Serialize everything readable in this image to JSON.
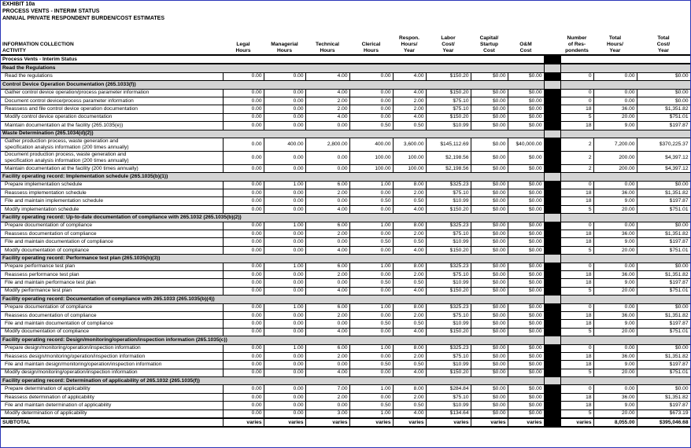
{
  "header": {
    "exhibit": "EXHIBIT 10a",
    "title": "PROCESS VENTS - INTERIM STATUS",
    "subtitle": "ANNUAL PRIVATE RESPONDENT BURDEN/COST ESTIMATES"
  },
  "table": {
    "columns": [
      "INFORMATION COLLECTION\nACTIVITY",
      "Legal\nHours",
      "Managerial\nHours",
      "Technical\nHours",
      "Clerical\nHours",
      "Respon.\nHours/\nYear",
      "Labor\nCost/\nYear",
      "Capital/\nStartup\nCost",
      "O&M\nCost",
      "Number\nof Res-\npondents",
      "Total\nHours/\nYear",
      "Total\nCost/\nYear"
    ],
    "group": "Process Vents - Interim Status",
    "sections": [
      {
        "title": "Read the Regulations",
        "rows": [
          [
            "Read the regulations",
            "0.00",
            "0.00",
            "4.00",
            "0.00",
            "4.00",
            "$150.20",
            "$0.00",
            "$0.00",
            "0",
            "0.00",
            "$0.00"
          ]
        ]
      },
      {
        "title": "Control Device Operation Documentation (265.1033(f))",
        "rows": [
          [
            "Gather control device operation/process parameter information",
            "0.00",
            "0.00",
            "4.00",
            "0.00",
            "4.00",
            "$150.20",
            "$0.00",
            "$0.00",
            "0",
            "0.00",
            "$0.00"
          ],
          [
            "Document control device/process parameter information",
            "0.00",
            "0.00",
            "2.00",
            "0.00",
            "2.00",
            "$75.10",
            "$0.00",
            "$0.00",
            "0",
            "0.00",
            "$0.00"
          ],
          [
            "Reassess and file control device operation documentation",
            "0.00",
            "0.00",
            "2.00",
            "0.00",
            "2.00",
            "$75.10",
            "$0.00",
            "$0.00",
            "18",
            "36.00",
            "$1,351.82"
          ],
          [
            "Modify control device operation documentation",
            "0.00",
            "0.00",
            "4.00",
            "0.00",
            "4.00",
            "$150.20",
            "$0.00",
            "$0.00",
            "5",
            "20.00",
            "$751.01"
          ],
          [
            "Maintain documentation at the facility (265.1035(e))",
            "0.00",
            "0.00",
            "0.00",
            "0.50",
            "0.50",
            "$10.99",
            "$0.00",
            "$0.00",
            "18",
            "9.00",
            "$197.87"
          ]
        ]
      },
      {
        "title": "Waste Determination (265.1034(d)(2))",
        "rows": [
          [
            "Gather production process, waste generation and\nspecification analysis information (200 times annually)",
            "0.00",
            "400.00",
            "2,800.00",
            "400.00",
            "3,600.00",
            "$145,112.69",
            "$0.00",
            "$40,000.00",
            "2",
            "7,200.00",
            "$370,225.37"
          ],
          [
            "Document production process, waste generation and\nspecification analysis information (200 times annually)",
            "0.00",
            "0.00",
            "0.00",
            "100.00",
            "100.00",
            "$2,198.56",
            "$0.00",
            "$0.00",
            "2",
            "200.00",
            "$4,397.12"
          ],
          [
            "Maintain documentation at the facility (200 times annually)",
            "0.00",
            "0.00",
            "0.00",
            "100.00",
            "100.00",
            "$2,198.56",
            "$0.00",
            "$0.00",
            "2",
            "200.00",
            "$4,397.12"
          ]
        ]
      },
      {
        "title": "Facility operating record: Implementation schedule (265.1035(b)(1))",
        "rows": [
          [
            "Prepare implementation schedule",
            "0.00",
            "1.00",
            "6.00",
            "1.00",
            "8.00",
            "$325.23",
            "$0.00",
            "$0.00",
            "0",
            "0.00",
            "$0.00"
          ],
          [
            "Reassess implementation schedule",
            "0.00",
            "0.00",
            "2.00",
            "0.00",
            "2.00",
            "$75.10",
            "$0.00",
            "$0.00",
            "18",
            "36.00",
            "$1,351.82"
          ],
          [
            "File and maintain implementation schedule",
            "0.00",
            "0.00",
            "0.00",
            "0.50",
            "0.50",
            "$10.99",
            "$0.00",
            "$0.00",
            "18",
            "9.00",
            "$197.87"
          ],
          [
            "Modify implementation schedule",
            "0.00",
            "0.00",
            "4.00",
            "0.00",
            "4.00",
            "$150.20",
            "$0.00",
            "$0.00",
            "5",
            "20.00",
            "$751.01"
          ]
        ]
      },
      {
        "title": "Facility operating record: Up-to-date documentation of compliance with 265.1032 (265.1035(b)(2))",
        "rows": [
          [
            "Prepare documentation of compliance",
            "0.00",
            "1.00",
            "6.00",
            "1.00",
            "8.00",
            "$325.23",
            "$0.00",
            "$0.00",
            "0",
            "0.00",
            "$0.00"
          ],
          [
            "Reassess documentation of compliance",
            "0.00",
            "0.00",
            "2.00",
            "0.00",
            "2.00",
            "$75.10",
            "$0.00",
            "$0.00",
            "18",
            "36.00",
            "$1,351.82"
          ],
          [
            "File and maintain documentation of compliance",
            "0.00",
            "0.00",
            "0.00",
            "0.50",
            "0.50",
            "$10.99",
            "$0.00",
            "$0.00",
            "18",
            "9.00",
            "$197.87"
          ],
          [
            "Modify documentation of compliance",
            "0.00",
            "0.00",
            "4.00",
            "0.00",
            "4.00",
            "$150.20",
            "$0.00",
            "$0.00",
            "5",
            "20.00",
            "$751.01"
          ]
        ]
      },
      {
        "title": "Facility operating record: Performance test plan (265.1035(b)(3))",
        "rows": [
          [
            "Prepare performance test plan",
            "0.00",
            "1.00",
            "6.00",
            "1.00",
            "8.00",
            "$325.23",
            "$0.00",
            "$0.00",
            "0",
            "0.00",
            "$0.00"
          ],
          [
            "Reassess performance test plan",
            "0.00",
            "0.00",
            "2.00",
            "0.00",
            "2.00",
            "$75.10",
            "$0.00",
            "$0.00",
            "18",
            "36.00",
            "$1,351.82"
          ],
          [
            "File and maintain performance test plan",
            "0.00",
            "0.00",
            "0.00",
            "0.50",
            "0.50",
            "$10.99",
            "$0.00",
            "$0.00",
            "18",
            "9.00",
            "$197.87"
          ],
          [
            "Modify performance test plan",
            "0.00",
            "0.00",
            "4.00",
            "0.00",
            "4.00",
            "$150.20",
            "$0.00",
            "$0.00",
            "5",
            "20.00",
            "$751.01"
          ]
        ]
      },
      {
        "title": "Facility operating record: Documentation of compliance with 265.1033 (265.1035(b)(4))",
        "rows": [
          [
            "Prepare documentation of compliance",
            "0.00",
            "1.00",
            "6.00",
            "1.00",
            "8.00",
            "$325.23",
            "$0.00",
            "$0.00",
            "0",
            "0.00",
            "$0.00"
          ],
          [
            "Reassess documentation of compliance",
            "0.00",
            "0.00",
            "2.00",
            "0.00",
            "2.00",
            "$75.10",
            "$0.00",
            "$0.00",
            "18",
            "36.00",
            "$1,351.82"
          ],
          [
            "File and maintain documentation of compliance",
            "0.00",
            "0.00",
            "0.00",
            "0.50",
            "0.50",
            "$10.99",
            "$0.00",
            "$0.00",
            "18",
            "9.00",
            "$197.87"
          ],
          [
            "Modify documentation of compliance",
            "0.00",
            "0.00",
            "4.00",
            "0.00",
            "4.00",
            "$150.20",
            "$0.00",
            "$0.00",
            "5",
            "20.00",
            "$751.01"
          ]
        ]
      },
      {
        "title": "Facility operating record: Design/monitoring/operation/inspection information (265.1035(c))",
        "rows": [
          [
            "Prepare design/monitoring/operation/inspection information",
            "0.00",
            "1.00",
            "6.00",
            "1.00",
            "8.00",
            "$325.23",
            "$0.00",
            "$0.00",
            "0",
            "0.00",
            "$0.00"
          ],
          [
            "Reassess design/monitoring/operation/inspection information",
            "0.00",
            "0.00",
            "2.00",
            "0.00",
            "2.00",
            "$75.10",
            "$0.00",
            "$0.00",
            "18",
            "36.00",
            "$1,351.82"
          ],
          [
            "File and maintain design/monitoring/operation/inspection information",
            "0.00",
            "0.00",
            "0.00",
            "0.50",
            "0.50",
            "$10.99",
            "$0.00",
            "$0.00",
            "18",
            "9.00",
            "$197.87"
          ],
          [
            "Modify design/monitoring/operation/inspection information",
            "0.00",
            "0.00",
            "4.00",
            "0.00",
            "4.00",
            "$150.20",
            "$0.00",
            "$0.00",
            "5",
            "20.00",
            "$751.01"
          ]
        ]
      },
      {
        "title": "Facility operating record: Determination of applicability of 265.1032 (265.1035(f))",
        "rows": [
          [
            "Prepare determination of applicability",
            "0.00",
            "0.00",
            "7.00",
            "1.00",
            "8.00",
            "$284.84",
            "$0.00",
            "$0.00",
            "0",
            "0.00",
            "$0.00"
          ],
          [
            "Reassess determination of applicability",
            "0.00",
            "0.00",
            "2.00",
            "0.00",
            "2.00",
            "$75.10",
            "$0.00",
            "$0.00",
            "18",
            "36.00",
            "$1,351.82"
          ],
          [
            "File and maintain determination of applicability",
            "0.00",
            "0.00",
            "0.00",
            "0.50",
            "0.50",
            "$10.99",
            "$0.00",
            "$0.00",
            "18",
            "9.00",
            "$197.87"
          ],
          [
            "Modify determination of applicability",
            "0.00",
            "0.00",
            "3.00",
            "1.00",
            "4.00",
            "$134.64",
            "$0.00",
            "$0.00",
            "5",
            "20.00",
            "$673.19"
          ]
        ]
      }
    ],
    "subtotal": [
      "SUBTOTAL",
      "varies",
      "varies",
      "varies",
      "varies",
      "varies",
      "varies",
      "varies",
      "varies",
      "varies",
      "8,055.00",
      "$395,046.68"
    ]
  }
}
